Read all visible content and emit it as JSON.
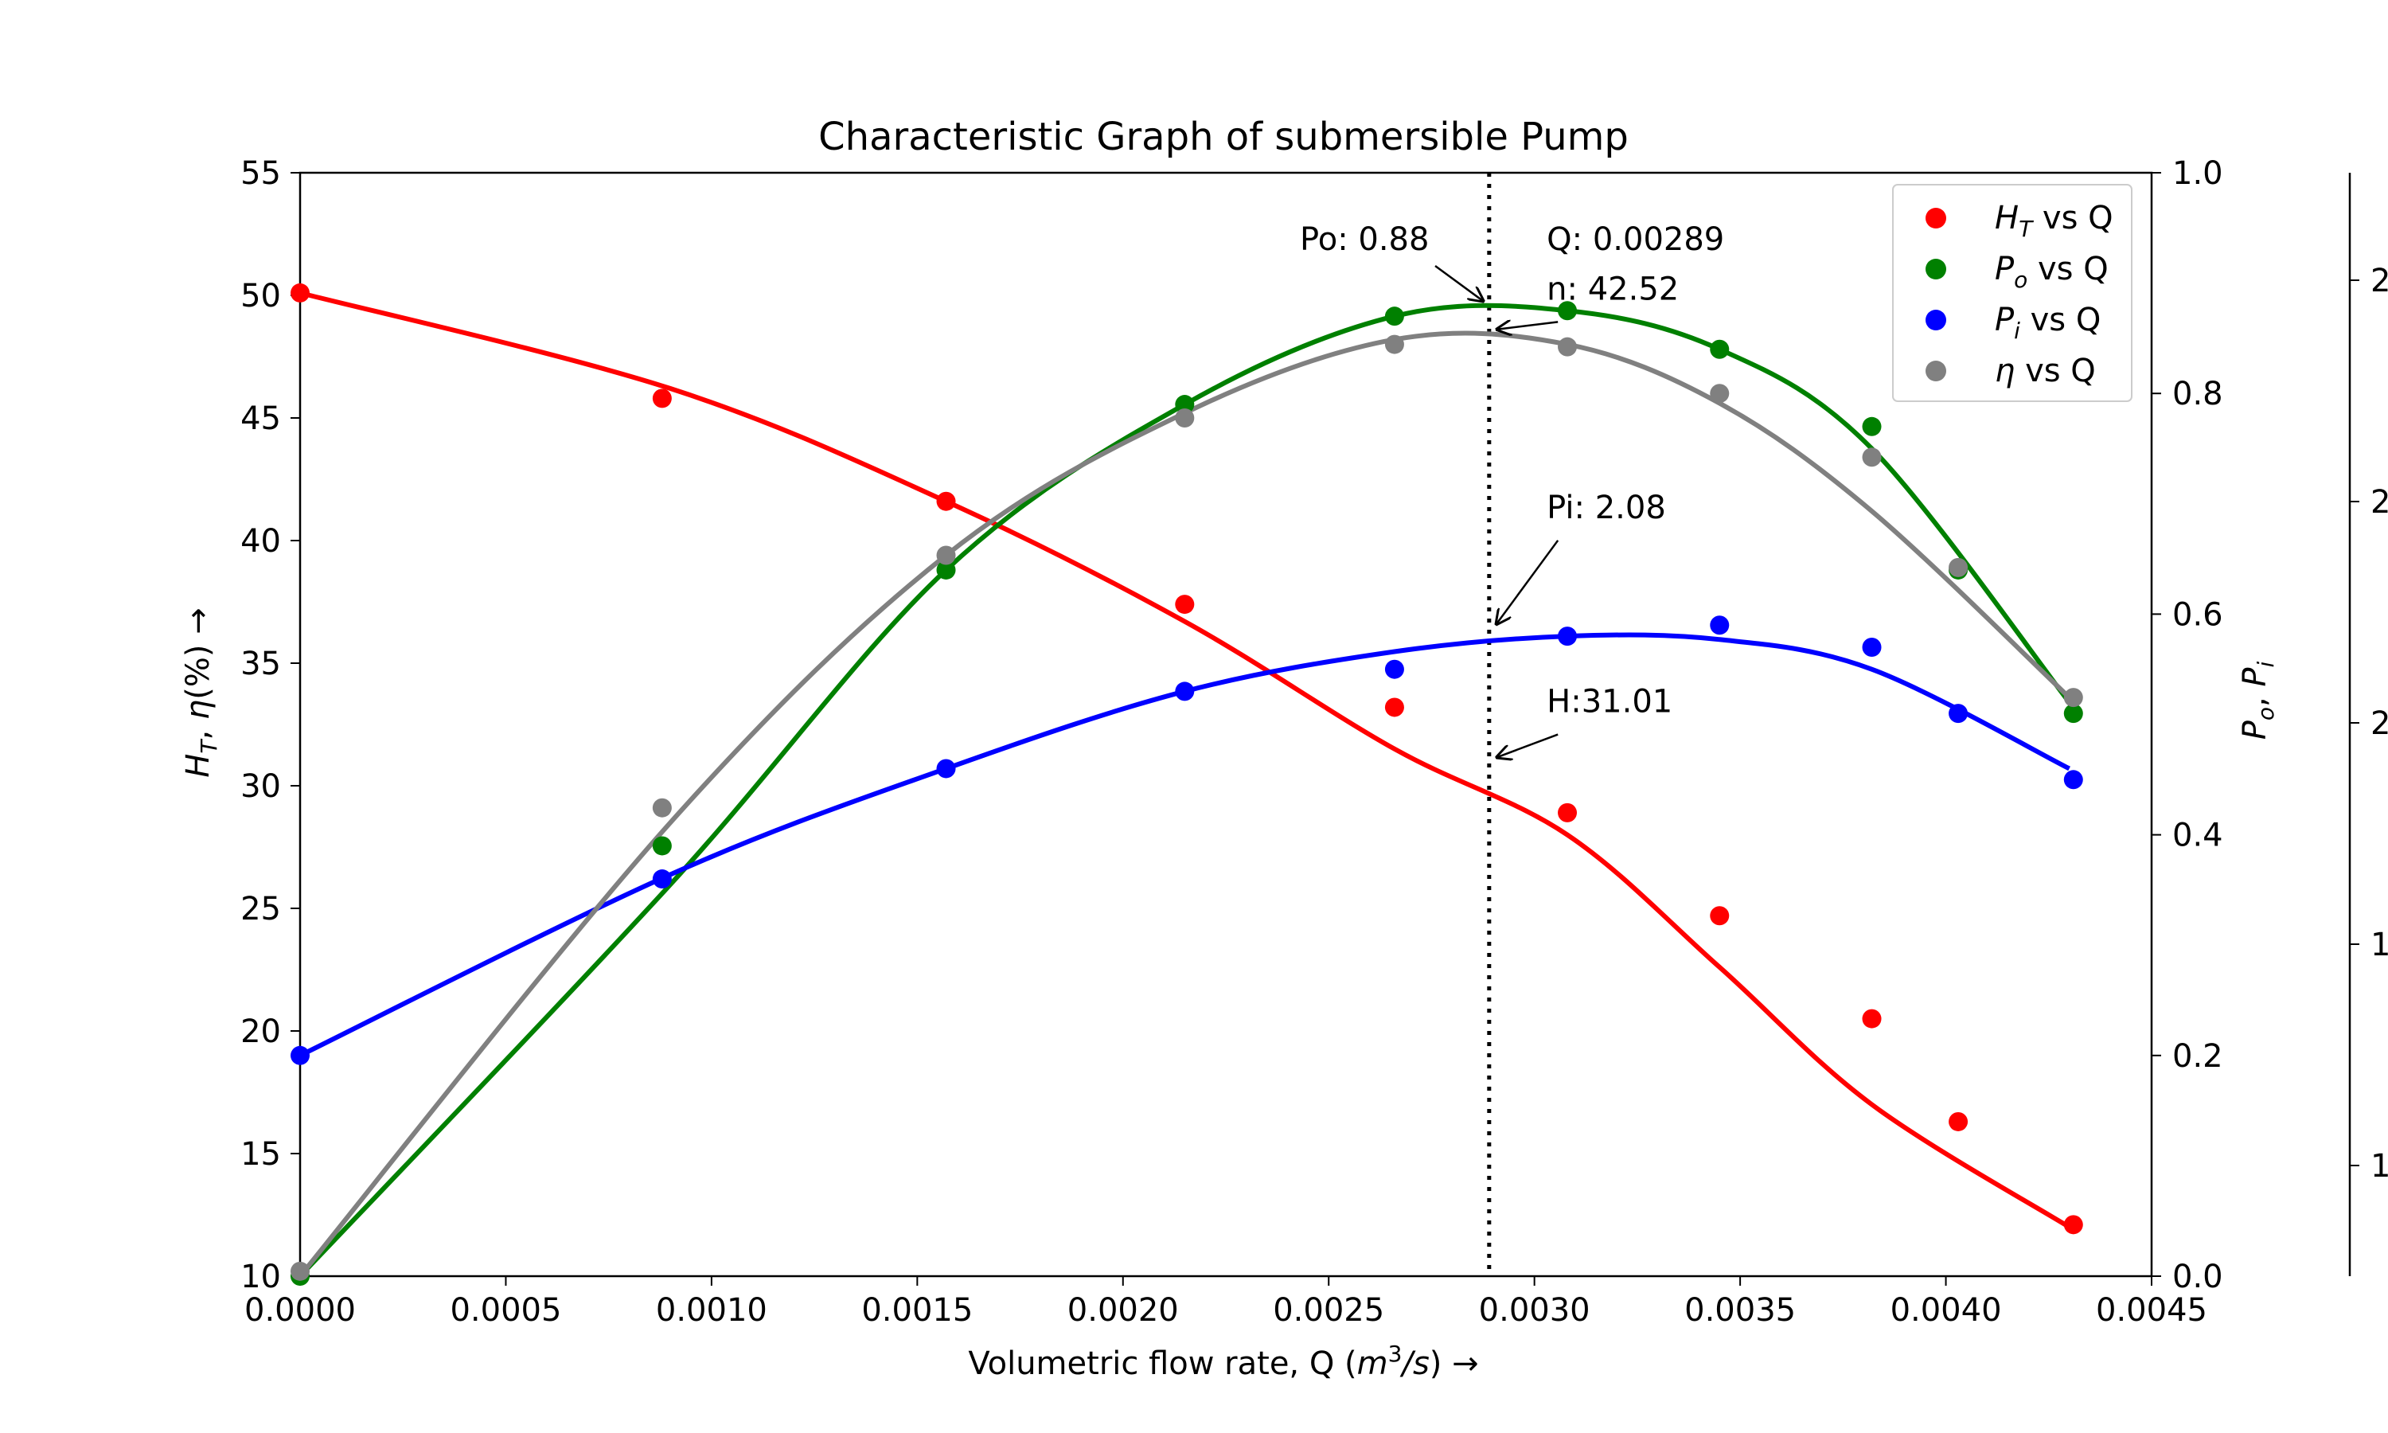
{
  "chart_data": {
    "type": "scatter",
    "title": "Characteristic Graph of submersible Pump",
    "xlabel": "Volumetric flow rate, Q (m³/s) →",
    "ylabel": "H_T, η(%) →",
    "ylabel2": "P_o, P_i",
    "xlim": [
      0.0,
      0.0045
    ],
    "ylim": [
      10,
      55
    ],
    "ylim2": [
      0.0,
      1.0
    ],
    "x_ticks": [
      "0.0000",
      "0.0005",
      "0.0010",
      "0.0015",
      "0.0020",
      "0.0025",
      "0.0030",
      "0.0035",
      "0.0040",
      "0.0045"
    ],
    "y_ticks": [
      "10",
      "15",
      "20",
      "25",
      "30",
      "35",
      "40",
      "45",
      "50",
      "55"
    ],
    "y2_ticks": [
      "0.0",
      "0.2",
      "0.4",
      "0.6",
      "0.8",
      "1.0"
    ],
    "third_axis_ticks": [
      "1",
      "1",
      "2",
      "2",
      "2"
    ],
    "legend_position": "top-right",
    "vline_x": 0.00289,
    "series": [
      {
        "name": "H_T vs Q",
        "legend": [
          "H",
          "T",
          " vs Q"
        ],
        "axis": "left",
        "color": "#ff0000",
        "x": [
          0.0,
          0.00088,
          0.00157,
          0.00215,
          0.00266,
          0.00308,
          0.00345,
          0.00382,
          0.00403,
          0.00431
        ],
        "y": [
          50.1,
          45.8,
          41.6,
          37.4,
          33.2,
          28.9,
          24.7,
          20.5,
          16.3,
          12.1
        ],
        "fit_y": [
          50.1,
          46.2,
          41.6,
          36.7,
          31.5,
          28.0,
          22.6,
          17.0,
          12.0
        ]
      },
      {
        "name": "P_o vs Q",
        "legend": [
          "P",
          "o",
          " vs Q"
        ],
        "axis": "right",
        "color": "#008000",
        "x": [
          0.0,
          0.00088,
          0.00157,
          0.00215,
          0.00266,
          0.00308,
          0.00345,
          0.00382,
          0.00403,
          0.00431
        ],
        "y": [
          0.0,
          0.39,
          0.64,
          0.79,
          0.87,
          0.875,
          0.84,
          0.77,
          0.64,
          0.51
        ],
        "fit_y": [
          0.0,
          0.355,
          0.64,
          0.79,
          0.87,
          0.875,
          0.84,
          0.75,
          0.52
        ]
      },
      {
        "name": "P_i vs Q",
        "legend": [
          "P",
          "i",
          " vs Q"
        ],
        "axis": "right",
        "color": "#0000ff",
        "x": [
          0.0,
          0.00088,
          0.00157,
          0.00215,
          0.00266,
          0.00308,
          0.00345,
          0.00382,
          0.00403,
          0.00431
        ],
        "y": [
          0.2,
          0.36,
          0.46,
          0.53,
          0.55,
          0.58,
          0.59,
          0.57,
          0.51,
          0.45
        ],
        "fit_y": [
          0.2,
          0.364,
          0.46,
          0.53,
          0.566,
          0.58,
          0.577,
          0.55,
          0.46
        ]
      },
      {
        "name": "η vs Q",
        "legend": [
          "η",
          "",
          " vs Q"
        ],
        "axis": "left",
        "color": "#808080",
        "x": [
          0.0,
          0.00088,
          0.00157,
          0.00215,
          0.00266,
          0.00308,
          0.00345,
          0.00382,
          0.00403,
          0.00431
        ],
        "y": [
          10.2,
          29.1,
          39.4,
          45.0,
          48.0,
          47.9,
          46.0,
          43.4,
          38.9,
          33.6
        ],
        "fit_y": [
          10.0,
          28.5,
          39.4,
          45.2,
          48.2,
          48.0,
          45.6,
          41.2,
          33.6
        ]
      }
    ],
    "fit_x": [
      0.0,
      0.0009,
      0.00157,
      0.00215,
      0.00266,
      0.00308,
      0.00345,
      0.00382,
      0.0043
    ],
    "annotations": [
      {
        "text": "Po: 0.88",
        "x": 0.00289,
        "y": 0.88,
        "axis": "right",
        "tx": 0.00243,
        "ty": 0.93
      },
      {
        "text": "Q: 0.00289",
        "x": null,
        "y": null,
        "axis": "right",
        "tx": 0.00303,
        "ty": 0.93
      },
      {
        "text": "n: 42.52",
        "x": 0.00289,
        "y": 0.855,
        "axis": "right",
        "tx": 0.00303,
        "ty": 0.885
      },
      {
        "text": "Pi: 2.08",
        "x": 0.00289,
        "y": 0.587,
        "axis": "right",
        "tx": 0.00303,
        "ty": 0.687
      },
      {
        "text": "H:31.01",
        "x": 0.00289,
        "y": 31.01,
        "axis": "left",
        "tx": 0.00303,
        "ty": 33.0
      }
    ]
  }
}
